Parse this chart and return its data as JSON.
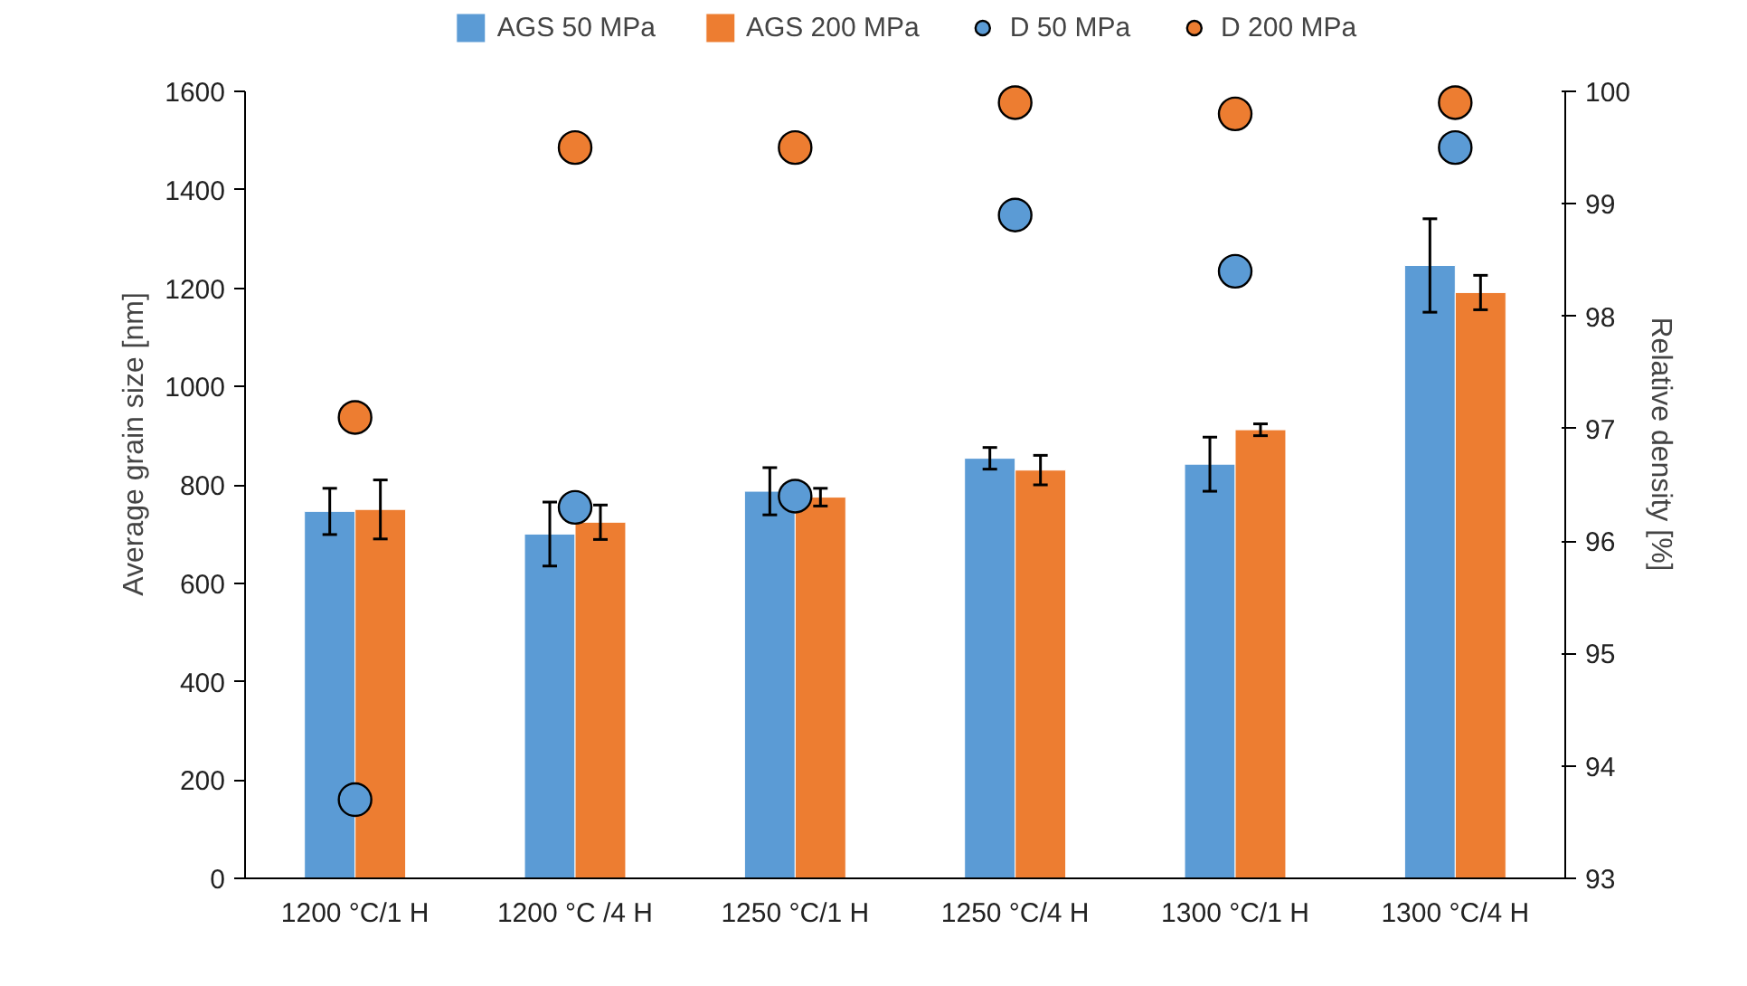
{
  "chart_data": {
    "type": "bar",
    "ylabel": "Average grain size [nm]",
    "y2label": "Relative density [%]",
    "categories": [
      "1200 °C/1 H",
      "1200 °C /4 H",
      "1250 °C/1 H",
      "1250 °C/4 H",
      "1300 °C/1 H",
      "1300 °C/4 H"
    ],
    "series": [
      {
        "name": "AGS 50 MPa",
        "color": "#5b9bd5",
        "values": [
          746,
          700,
          787,
          854,
          842,
          1246
        ],
        "errors": [
          47,
          65,
          48,
          22,
          55,
          95
        ]
      },
      {
        "name": "AGS 200 MPa",
        "color": "#ed7d31",
        "values": [
          750,
          724,
          775,
          830,
          912,
          1191
        ],
        "errors": [
          60,
          35,
          18,
          30,
          12,
          35
        ]
      },
      {
        "name": "D 50 MPa",
        "type": "scatter",
        "axis": "y2",
        "color": "#5b9bd5",
        "marker": "circle",
        "values": [
          93.7,
          96.3,
          96.4,
          98.9,
          98.4,
          99.5
        ]
      },
      {
        "name": "D 200 MPa",
        "type": "scatter",
        "axis": "y2",
        "color": "#ed7d31",
        "marker": "circle",
        "values": [
          97.1,
          99.5,
          99.5,
          99.9,
          99.8,
          99.9
        ]
      }
    ],
    "ylim": [
      0,
      1600
    ],
    "yticks": [
      0,
      200,
      400,
      600,
      800,
      1000,
      1200,
      1400,
      1600
    ],
    "y2lim": [
      93,
      100
    ],
    "y2ticks": [
      93,
      94,
      95,
      96,
      97,
      98,
      99,
      100
    ],
    "grid": false,
    "legend": "top"
  }
}
